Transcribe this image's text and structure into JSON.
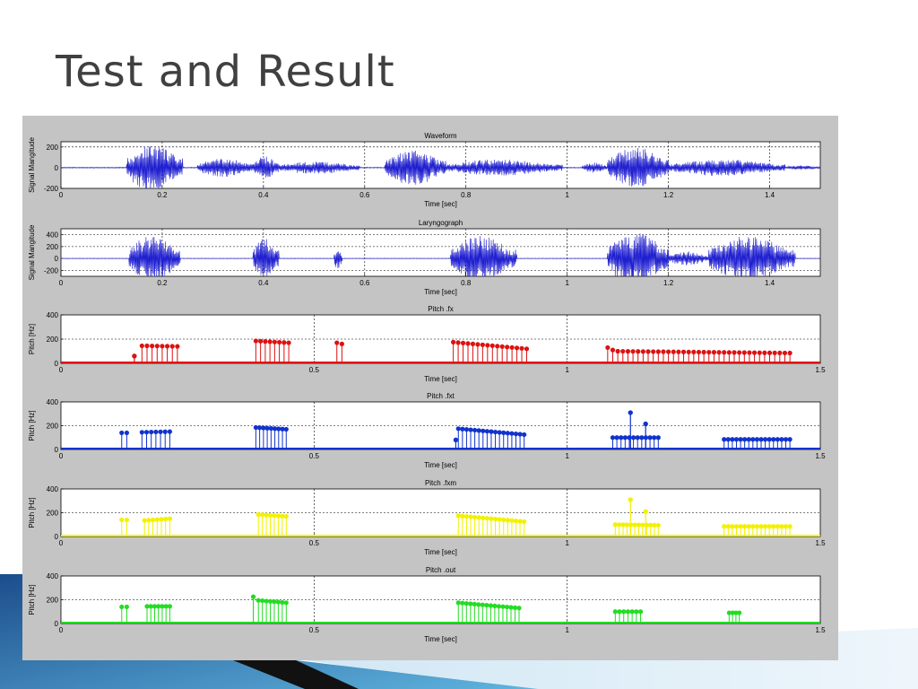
{
  "slide": {
    "title": "Test and Result"
  },
  "colors": {
    "waveform": "#1f1fd0",
    "fx": "#dd1111",
    "fxt": "#1133cc",
    "fxm": "#f2f200",
    "out": "#22dd22",
    "figure_bg": "#c4c4c4",
    "axes_bg": "#ffffff",
    "accent_blue_dark": "#1b4d8c",
    "accent_blue_light": "#5fb4de"
  },
  "chart_data": [
    {
      "type": "line",
      "title": "Waveform",
      "xlabel": "Time [sec]",
      "ylabel": "Signal Mangitude",
      "xlim": [
        0,
        1.5
      ],
      "ylim": [
        -200,
        250
      ],
      "x_ticks": [
        0,
        0.2,
        0.4,
        0.6,
        0.8,
        1,
        1.2,
        1.4
      ],
      "y_ticks": [
        -200,
        0,
        200
      ],
      "grid": "dotted",
      "series": [
        {
          "color": "#1f1fd0",
          "envelope": [
            {
              "t0": 0.13,
              "t1": 0.24,
              "amp": 230
            },
            {
              "t0": 0.27,
              "t1": 0.38,
              "amp": 90
            },
            {
              "t0": 0.38,
              "t1": 0.43,
              "amp": 110
            },
            {
              "t0": 0.43,
              "t1": 0.59,
              "amp": 60
            },
            {
              "t0": 0.64,
              "t1": 0.76,
              "amp": 170
            },
            {
              "t0": 0.76,
              "t1": 0.99,
              "amp": 80
            },
            {
              "t0": 1.03,
              "t1": 1.08,
              "amp": 50
            },
            {
              "t0": 1.08,
              "t1": 1.2,
              "amp": 200
            },
            {
              "t0": 1.2,
              "t1": 1.43,
              "amp": 80
            },
            {
              "t0": 1.43,
              "t1": 1.5,
              "amp": 20
            }
          ]
        }
      ]
    },
    {
      "type": "line",
      "title": "Laryngograph",
      "xlabel": "Time [sec]",
      "ylabel": "Signal Mangitude",
      "xlim": [
        0,
        1.5
      ],
      "ylim": [
        -300,
        500
      ],
      "x_ticks": [
        0,
        0.2,
        0.4,
        0.6,
        0.8,
        1,
        1.2,
        1.4
      ],
      "y_ticks": [
        -200,
        0,
        200,
        400
      ],
      "grid": "dotted",
      "series": [
        {
          "color": "#1f1fd0",
          "envelope": [
            {
              "t0": 0.135,
              "t1": 0.235,
              "amp": 400
            },
            {
              "t0": 0.38,
              "t1": 0.43,
              "amp": 350
            },
            {
              "t0": 0.54,
              "t1": 0.555,
              "amp": 200
            },
            {
              "t0": 0.77,
              "t1": 0.9,
              "amp": 380
            },
            {
              "t0": 1.08,
              "t1": 1.2,
              "amp": 450
            },
            {
              "t0": 1.2,
              "t1": 1.28,
              "amp": 120
            },
            {
              "t0": 1.28,
              "t1": 1.45,
              "amp": 380
            }
          ]
        }
      ]
    },
    {
      "type": "scatter",
      "title": "Pitch .fx",
      "xlabel": "Time [sec]",
      "ylabel": "Pitch [Hz]",
      "xlim": [
        0,
        1.5
      ],
      "ylim": [
        0,
        400
      ],
      "x_ticks": [
        0,
        0.5,
        1,
        1.5
      ],
      "x_tick_labels": [
        "0",
        "0.5",
        "1",
        "1.5"
      ],
      "y_ticks": [
        0,
        200,
        400
      ],
      "grid": "dotted",
      "series": [
        {
          "color": "#dd1111",
          "segments": [
            {
              "t0": 0.145,
              "t1": 0.145,
              "f0": 60,
              "f1": 60,
              "step": 0.01
            },
            {
              "t0": 0.16,
              "t1": 0.23,
              "f0": 145,
              "f1": 140,
              "step": 0.01
            },
            {
              "t0": 0.385,
              "t1": 0.45,
              "f0": 185,
              "f1": 170,
              "step": 0.01
            },
            {
              "t0": 0.545,
              "t1": 0.555,
              "f0": 170,
              "f1": 160,
              "step": 0.01
            },
            {
              "t0": 0.775,
              "t1": 0.92,
              "f0": 175,
              "f1": 120,
              "step": 0.01
            },
            {
              "t0": 1.08,
              "t1": 1.09,
              "f0": 130,
              "f1": 110,
              "step": 0.01
            },
            {
              "t0": 1.1,
              "t1": 1.44,
              "f0": 100,
              "f1": 85,
              "step": 0.01
            }
          ]
        }
      ]
    },
    {
      "type": "scatter",
      "title": "Pitch .fxt",
      "xlabel": "Time [sec]",
      "ylabel": "Pitch [Hz]",
      "xlim": [
        0,
        1.5
      ],
      "ylim": [
        0,
        400
      ],
      "x_ticks": [
        0,
        0.5,
        1,
        1.5
      ],
      "x_tick_labels": [
        "0",
        "0.5",
        "1",
        "1.5"
      ],
      "y_ticks": [
        0,
        200,
        400
      ],
      "grid": "dotted",
      "series": [
        {
          "color": "#1133cc",
          "segments": [
            {
              "t0": 0.12,
              "t1": 0.13,
              "f0": 140,
              "f1": 140,
              "step": 0.01
            },
            {
              "t0": 0.16,
              "t1": 0.215,
              "f0": 145,
              "f1": 150,
              "step": 0.009
            },
            {
              "t0": 0.385,
              "t1": 0.445,
              "f0": 185,
              "f1": 170,
              "step": 0.008
            },
            {
              "t0": 0.78,
              "t1": 0.78,
              "f0": 80,
              "f1": 80,
              "step": 0.01
            },
            {
              "t0": 0.785,
              "t1": 0.915,
              "f0": 175,
              "f1": 125,
              "step": 0.008
            },
            {
              "t0": 1.09,
              "t1": 1.18,
              "f0": 100,
              "f1": 100,
              "step": 0.008
            },
            {
              "t0": 1.125,
              "t1": 1.125,
              "f0": 310,
              "f1": 310,
              "step": 0.01
            },
            {
              "t0": 1.155,
              "t1": 1.155,
              "f0": 215,
              "f1": 215,
              "step": 0.01
            },
            {
              "t0": 1.31,
              "t1": 1.44,
              "f0": 85,
              "f1": 85,
              "step": 0.008
            }
          ]
        }
      ]
    },
    {
      "type": "scatter",
      "title": "Pitch .fxm",
      "xlabel": "Time [sec]",
      "ylabel": "Pitch [Hz]",
      "xlim": [
        0,
        1.5
      ],
      "ylim": [
        0,
        400
      ],
      "x_ticks": [
        0,
        0.5,
        1,
        1.5
      ],
      "x_tick_labels": [
        "0",
        "0.5",
        "1",
        "1.5"
      ],
      "y_ticks": [
        0,
        200,
        400
      ],
      "grid": "dotted",
      "series": [
        {
          "color": "#f2f200",
          "segments": [
            {
              "t0": 0.12,
              "t1": 0.13,
              "f0": 140,
              "f1": 140,
              "step": 0.01
            },
            {
              "t0": 0.165,
              "t1": 0.215,
              "f0": 135,
              "f1": 150,
              "step": 0.008
            },
            {
              "t0": 0.39,
              "t1": 0.445,
              "f0": 185,
              "f1": 170,
              "step": 0.008
            },
            {
              "t0": 0.785,
              "t1": 0.915,
              "f0": 175,
              "f1": 125,
              "step": 0.008
            },
            {
              "t0": 1.095,
              "t1": 1.18,
              "f0": 100,
              "f1": 95,
              "step": 0.008
            },
            {
              "t0": 1.125,
              "t1": 1.125,
              "f0": 310,
              "f1": 310,
              "step": 0.01
            },
            {
              "t0": 1.155,
              "t1": 1.155,
              "f0": 210,
              "f1": 210,
              "step": 0.01
            },
            {
              "t0": 1.31,
              "t1": 1.44,
              "f0": 85,
              "f1": 85,
              "step": 0.008
            }
          ]
        }
      ]
    },
    {
      "type": "scatter",
      "title": "Pitch .out",
      "xlabel": "Time [sec]",
      "ylabel": "Pitch [Hz]",
      "xlim": [
        0,
        1.5
      ],
      "ylim": [
        0,
        400
      ],
      "x_ticks": [
        0,
        0.5,
        1,
        1.5
      ],
      "x_tick_labels": [
        "0",
        "0.5",
        "1",
        "1.5"
      ],
      "y_ticks": [
        0,
        200,
        400
      ],
      "grid": "dotted",
      "series": [
        {
          "color": "#22dd22",
          "segments": [
            {
              "t0": 0.12,
              "t1": 0.13,
              "f0": 140,
              "f1": 140,
              "step": 0.01
            },
            {
              "t0": 0.17,
              "t1": 0.215,
              "f0": 145,
              "f1": 145,
              "step": 0.008
            },
            {
              "t0": 0.38,
              "t1": 0.38,
              "f0": 225,
              "f1": 225,
              "step": 0.01
            },
            {
              "t0": 0.39,
              "t1": 0.445,
              "f0": 195,
              "f1": 175,
              "step": 0.008
            },
            {
              "t0": 0.785,
              "t1": 0.905,
              "f0": 175,
              "f1": 130,
              "step": 0.008
            },
            {
              "t0": 1.095,
              "t1": 1.145,
              "f0": 100,
              "f1": 100,
              "step": 0.008
            },
            {
              "t0": 1.32,
              "t1": 1.34,
              "f0": 90,
              "f1": 90,
              "step": 0.008
            }
          ]
        }
      ]
    }
  ]
}
